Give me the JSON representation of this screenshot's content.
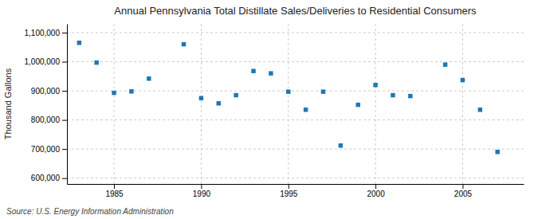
{
  "chart_data": {
    "type": "scatter",
    "title": "Annual Pennsylvania Total Distillate Sales/Deliveries to Residential Consumers",
    "ylabel": "Thousand Gallons",
    "annotations": [
      "Source: U.S. Energy Information Administration"
    ],
    "x": [
      1983,
      1984,
      1985,
      1986,
      1987,
      1989,
      1990,
      1991,
      1992,
      1993,
      1994,
      1995,
      1996,
      1997,
      1998,
      1999,
      2000,
      2001,
      2002,
      2004,
      2005,
      2006,
      2007
    ],
    "values": [
      1065000,
      997000,
      893000,
      898000,
      942000,
      1060000,
      875000,
      857000,
      885000,
      968000,
      960000,
      897000,
      835000,
      897000,
      712000,
      852000,
      920000,
      885000,
      882000,
      990000,
      937000,
      835000,
      690000
    ],
    "xlim": [
      1982.3,
      2008.5
    ],
    "ylim": [
      580000,
      1130000
    ],
    "xticks": [
      1985,
      1990,
      1995,
      2000,
      2005
    ],
    "yticks": [
      {
        "value": 600000,
        "label": "600,000"
      },
      {
        "value": 700000,
        "label": "700,000"
      },
      {
        "value": 800000,
        "label": "800,000"
      },
      {
        "value": 900000,
        "label": "900,000"
      },
      {
        "value": 1000000,
        "label": "1,000,000"
      },
      {
        "value": 1100000,
        "label": "1,100,000"
      }
    ],
    "marker": "square",
    "grid": true
  }
}
